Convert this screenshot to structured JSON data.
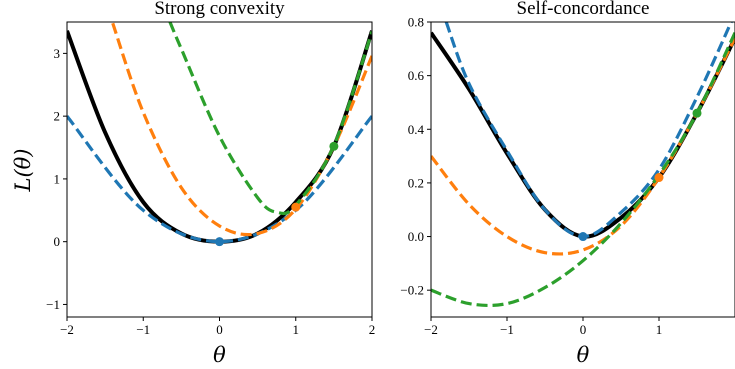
{
  "chart_data": [
    {
      "type": "line",
      "title": "Strong convexity",
      "xlabel": "θ",
      "ylabel": "L(θ)",
      "xlim": [
        -2,
        2
      ],
      "ylim": [
        -1.2,
        3.5
      ],
      "xticks": [
        -2,
        -1,
        0,
        1,
        2
      ],
      "yticks": [
        -1,
        0,
        1,
        2,
        3
      ],
      "xtick_labels": [
        "−2",
        "−1",
        "0",
        "1",
        "2"
      ],
      "ytick_labels": [
        "−1",
        "0",
        "1",
        "2",
        "3"
      ],
      "series": [
        {
          "color": "#000000",
          "style": "solid",
          "x": [
            -2,
            -1.5,
            -1,
            -0.5,
            0,
            0.5,
            1,
            1.5,
            2
          ],
          "y": [
            3.36,
            1.74,
            0.63,
            0.13,
            0,
            0.13,
            0.63,
            1.52,
            3.36
          ]
        },
        {
          "color": "#1f77b4",
          "style": "dashed",
          "x": [
            -2,
            -1,
            0,
            1,
            2
          ],
          "y": [
            2.0,
            0.5,
            0,
            0.5,
            2.0
          ]
        },
        {
          "color": "#ff7f0e",
          "style": "dashed",
          "x": [
            -1.4,
            -1,
            -0.5,
            0,
            0.5,
            1,
            1.5,
            2
          ],
          "y": [
            3.48,
            2.06,
            0.86,
            0.25,
            0.13,
            0.52,
            1.52,
            2.96
          ]
        },
        {
          "color": "#2ca02c",
          "style": "dashed",
          "x": [
            -0.65,
            -0.5,
            0,
            0.5,
            0.75,
            1,
            1.5,
            2
          ],
          "y": [
            3.5,
            3.07,
            1.68,
            0.7,
            0.47,
            0.58,
            1.53,
            3.35
          ]
        }
      ],
      "markers": [
        {
          "color": "#1f77b4",
          "x": 0,
          "y": 0
        },
        {
          "color": "#ff7f0e",
          "x": 1,
          "y": 0.55
        },
        {
          "color": "#2ca02c",
          "x": 1.5,
          "y": 1.52
        }
      ]
    },
    {
      "type": "line",
      "title": "Self-concordance",
      "xlabel": "θ",
      "xlim": [
        -2,
        2
      ],
      "ylim": [
        -0.3,
        0.8
      ],
      "xticks": [
        -2,
        -1,
        0,
        1
      ],
      "yticks": [
        -0.2,
        0.0,
        0.2,
        0.4,
        0.6,
        0.8
      ],
      "xtick_labels": [
        "−2",
        "−1",
        "0",
        "1"
      ],
      "ytick_labels": [
        "−0.2",
        "0.0",
        "0.2",
        "0.4",
        "0.6",
        "0.8"
      ],
      "series": [
        {
          "color": "#000000",
          "style": "solid",
          "x": [
            -2,
            -1.5,
            -1,
            -0.5,
            0,
            0.5,
            1,
            1.5,
            2
          ],
          "y": [
            0.76,
            0.55,
            0.31,
            0.1,
            0,
            0.07,
            0.22,
            0.46,
            0.74
          ]
        },
        {
          "color": "#1f77b4",
          "style": "dashed",
          "x": [
            -1.8,
            -1.5,
            -1,
            -0.5,
            0,
            0.5,
            1,
            1.5,
            1.95
          ],
          "y": [
            0.8,
            0.57,
            0.32,
            0.1,
            0,
            0.09,
            0.25,
            0.52,
            0.8
          ]
        },
        {
          "color": "#ff7f0e",
          "style": "dashed",
          "x": [
            -2,
            -1.5,
            -1,
            -0.5,
            0,
            0.5,
            1,
            1.5,
            2
          ],
          "y": [
            0.3,
            0.12,
            0.0,
            -0.06,
            -0.05,
            0.04,
            0.22,
            0.46,
            0.74
          ]
        },
        {
          "color": "#2ca02c",
          "style": "dashed",
          "x": [
            -2,
            -1.5,
            -1,
            -0.5,
            0,
            0.5,
            1,
            1.5,
            2
          ],
          "y": [
            -0.2,
            -0.25,
            -0.25,
            -0.19,
            -0.09,
            0.05,
            0.23,
            0.46,
            0.76
          ]
        }
      ],
      "markers": [
        {
          "color": "#1f77b4",
          "x": 0,
          "y": 0
        },
        {
          "color": "#ff7f0e",
          "x": 1,
          "y": 0.22
        },
        {
          "color": "#2ca02c",
          "x": 1.5,
          "y": 0.46
        }
      ]
    }
  ]
}
